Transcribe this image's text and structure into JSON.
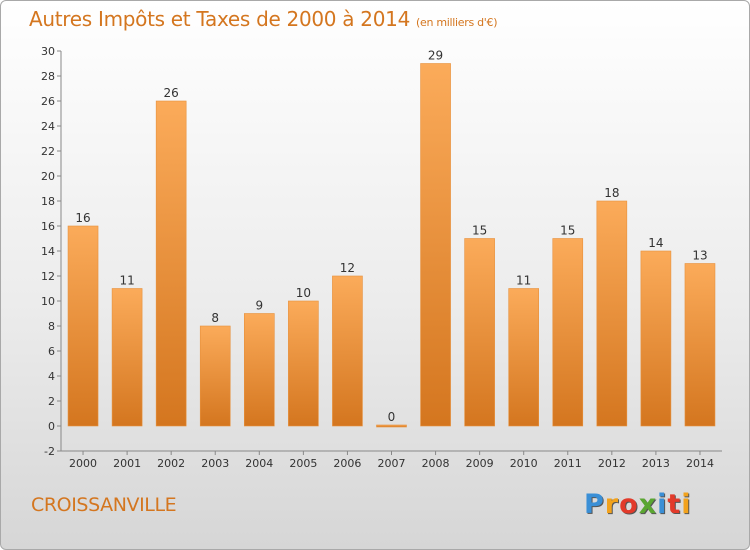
{
  "header": {
    "title": "Autres Impôts et Taxes de 2000 à 2014",
    "subtitle": "(en milliers d'€)"
  },
  "footer": {
    "commune": "CROISSANVILLE",
    "logo": "Proxiti"
  },
  "colors": {
    "bar_light": "#fbab5a",
    "bar_dark": "#d4761f",
    "text_accent": "#d4761f"
  },
  "chart_data": {
    "type": "bar",
    "title": "Autres Impôts et Taxes de 2000 à 2014",
    "subtitle": "(en milliers d'€)",
    "categories": [
      "2000",
      "2001",
      "2002",
      "2003",
      "2004",
      "2005",
      "2006",
      "2007",
      "2008",
      "2009",
      "2010",
      "2011",
      "2012",
      "2013",
      "2014"
    ],
    "values": [
      16,
      11,
      26,
      8,
      9,
      10,
      12,
      0,
      29,
      15,
      11,
      15,
      18,
      14,
      13
    ],
    "ylim": [
      -2,
      30
    ],
    "yticks": [
      -2,
      0,
      2,
      4,
      6,
      8,
      10,
      12,
      14,
      16,
      18,
      20,
      22,
      24,
      26,
      28,
      30
    ],
    "grid": false,
    "xlabel": "",
    "ylabel": ""
  }
}
